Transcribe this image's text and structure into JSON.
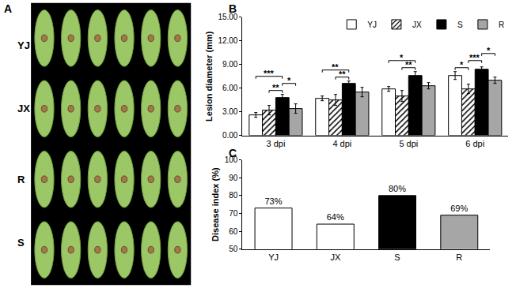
{
  "image": {
    "panel": "A",
    "rows": [
      "YJ",
      "JX",
      "R",
      "S"
    ]
  },
  "chart_data": [
    {
      "type": "bar",
      "panel": "B",
      "categories": [
        "3 dpi",
        "4 dpi",
        "5 dpi",
        "6 dpi"
      ],
      "y_label": "Lesion diameter (mm)",
      "ylim": [
        0,
        15
      ],
      "yticks": [
        {
          "value": 0,
          "label": "0.00"
        },
        {
          "value": 3,
          "label": "3.00"
        },
        {
          "value": 6,
          "label": "6.00"
        },
        {
          "value": 9,
          "label": "9.00"
        },
        {
          "value": 12,
          "label": "12.00"
        },
        {
          "value": 15,
          "label": "15.00"
        }
      ],
      "grid": false,
      "legend": "upper right",
      "series": [
        {
          "name": "YJ",
          "color": "#ffffff",
          "values": [
            2.6,
            4.7,
            5.9,
            7.6
          ],
          "errors": [
            0.3,
            0.3,
            0.3,
            0.5
          ]
        },
        {
          "name": "JX",
          "color": "#ffffff",
          "marker": "hatched",
          "values": [
            3.2,
            4.5,
            5.0,
            5.9
          ],
          "errors": [
            0.6,
            0.7,
            0.7,
            0.6
          ]
        },
        {
          "name": "S",
          "color": "#000000",
          "values": [
            4.8,
            6.6,
            7.6,
            8.4
          ],
          "errors": [
            0.4,
            0.3,
            0.5,
            0.3
          ]
        },
        {
          "name": "R",
          "color": "#a6a6a6",
          "values": [
            3.4,
            5.5,
            6.3,
            7.0
          ],
          "errors": [
            0.6,
            0.6,
            0.4,
            0.4
          ]
        }
      ],
      "significance": [
        {
          "category": "3 dpi",
          "from": "YJ",
          "to": "S",
          "label": "***"
        },
        {
          "category": "3 dpi",
          "from": "JX",
          "to": "S",
          "label": "**"
        },
        {
          "category": "3 dpi",
          "from": "S",
          "to": "R",
          "label": "*"
        },
        {
          "category": "4 dpi",
          "from": "YJ",
          "to": "S",
          "label": "**"
        },
        {
          "category": "4 dpi",
          "from": "JX",
          "to": "S",
          "label": "**"
        },
        {
          "category": "5 dpi",
          "from": "YJ",
          "to": "S",
          "label": "*"
        },
        {
          "category": "5 dpi",
          "from": "JX",
          "to": "S",
          "label": "**"
        },
        {
          "category": "6 dpi",
          "from": "YJ",
          "to": "JX",
          "label": "*"
        },
        {
          "category": "6 dpi",
          "from": "JX",
          "to": "S",
          "label": "***"
        },
        {
          "category": "6 dpi",
          "from": "S",
          "to": "R",
          "label": "*"
        }
      ]
    },
    {
      "type": "bar",
      "panel": "C",
      "categories": [
        "YJ",
        "JX",
        "S",
        "R"
      ],
      "values": [
        73,
        64,
        80,
        69
      ],
      "value_labels": [
        "73%",
        "64%",
        "80%",
        "69%"
      ],
      "data_labels": true,
      "colors": [
        "#ffffff",
        "#ffffff",
        "#000000",
        "#a6a6a6"
      ],
      "y_label": "Disease index (%)",
      "ylim": [
        50,
        100
      ],
      "yticks": [
        50,
        60,
        70,
        80,
        90,
        100
      ],
      "grid": false
    }
  ]
}
